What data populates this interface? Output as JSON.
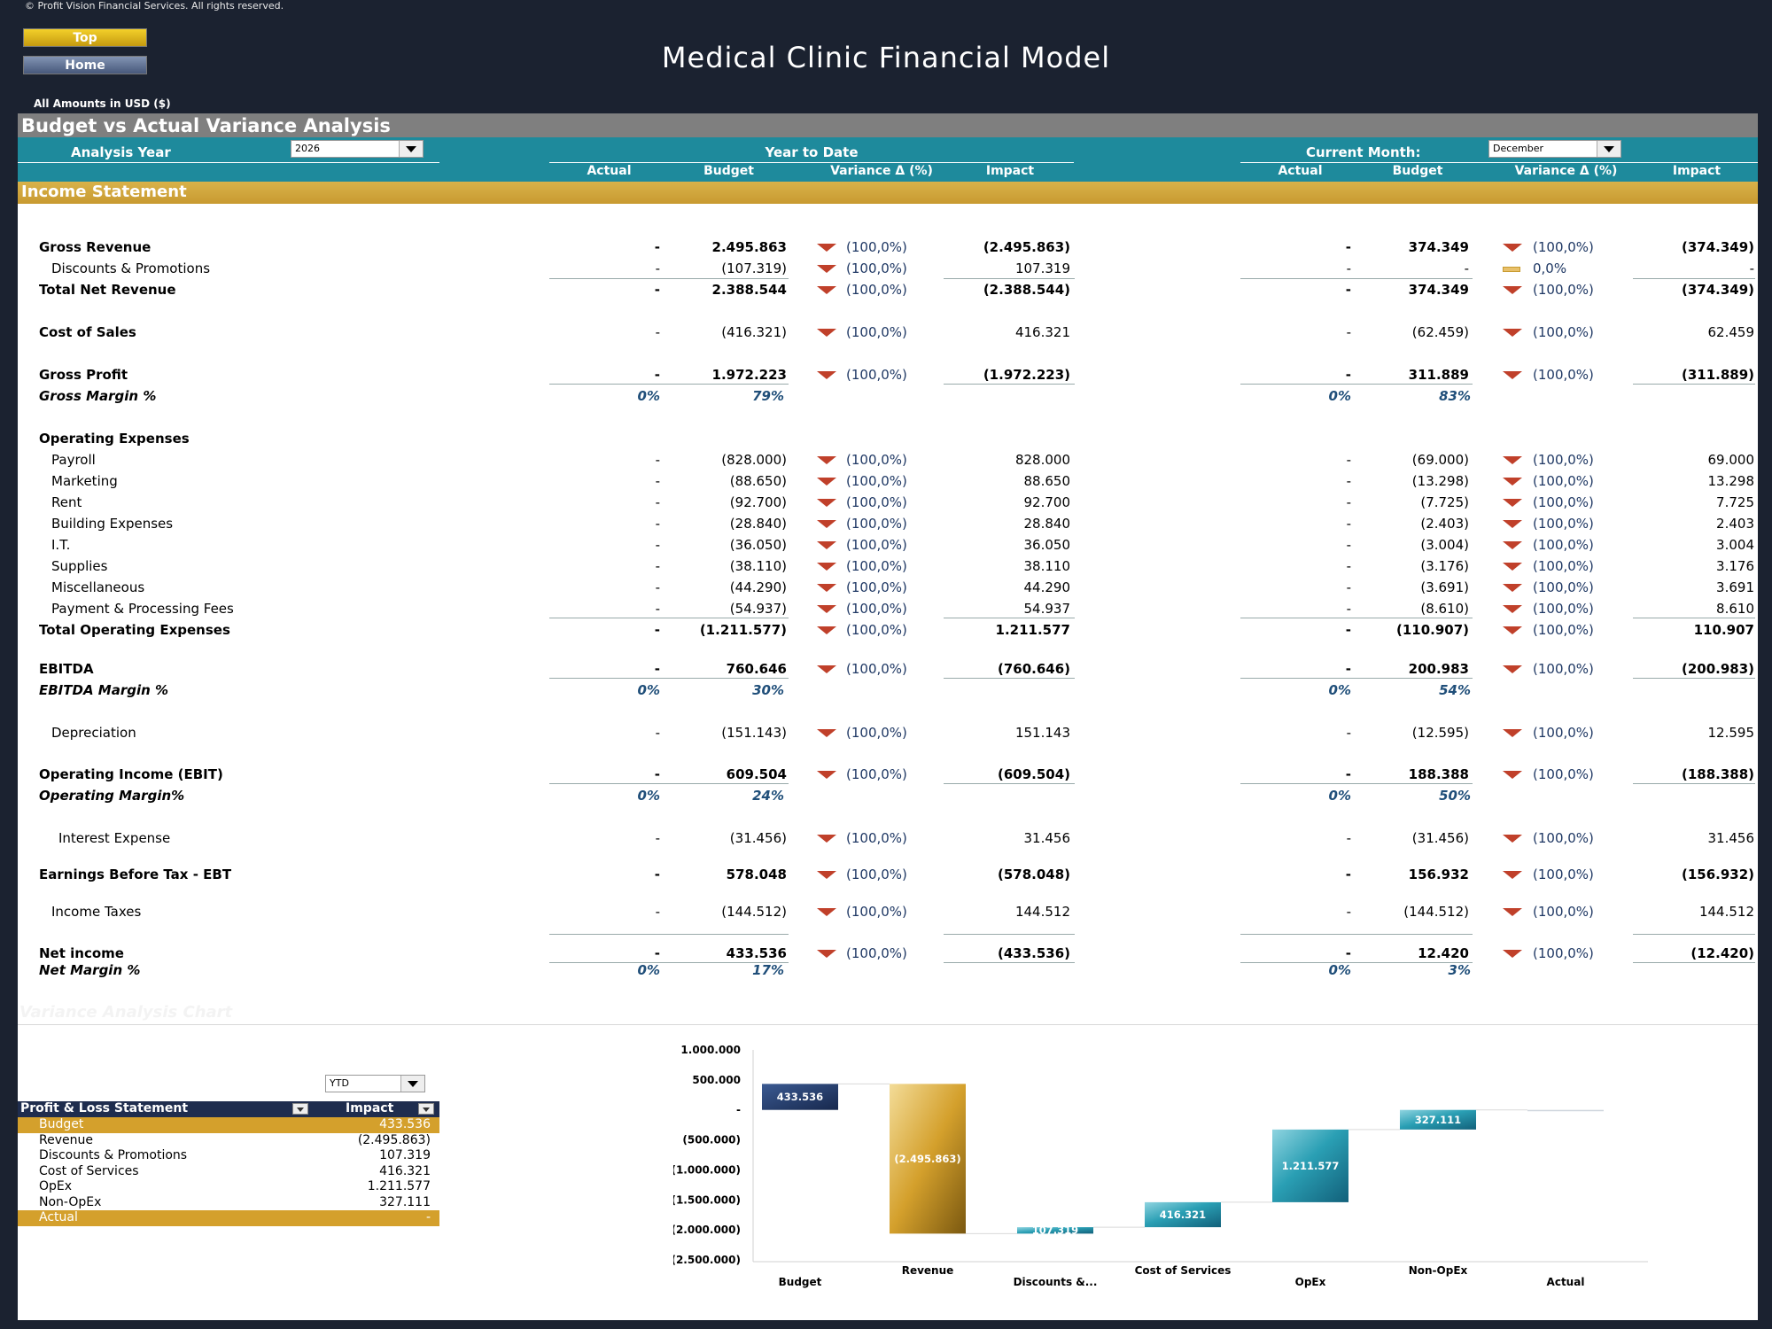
{
  "copyright": "© Profit Vision Financial Services. All rights reserved.",
  "nav": {
    "top": "Top",
    "home": "Home"
  },
  "title": "Medical Clinic Financial Model",
  "amounts_note": "All Amounts in  USD ($)",
  "section_title": "Budget vs Actual Variance Analysis",
  "header": {
    "analysis_year_label": "Analysis Year",
    "analysis_year_value": "2026",
    "ytd_label": "Year to Date",
    "current_month_label": "Current Month:",
    "current_month_value": "December",
    "columns": [
      "Actual",
      "Budget",
      "Variance Δ  (%)",
      "Impact"
    ]
  },
  "income_statement_title": "Income Statement",
  "rows": [
    {
      "label": "Gross Revenue",
      "bold": true,
      "ytd": [
        "-",
        "2.495.863",
        "(100,0%)",
        "(2.495.863)"
      ],
      "mon": [
        "-",
        "374.349",
        "(100,0%)",
        "(374.349)"
      ]
    },
    {
      "label": "Discounts & Promotions",
      "indent": 1,
      "ytd": [
        "-",
        "(107.319)",
        "(100,0%)",
        "107.319"
      ],
      "mon": [
        "-",
        "-",
        "0,0%",
        "-"
      ],
      "mon_flat": true
    },
    {
      "label": "Total Net Revenue",
      "bold": true,
      "ytd": [
        "-",
        "2.388.544",
        "(100,0%)",
        "(2.388.544)"
      ],
      "mon": [
        "-",
        "374.349",
        "(100,0%)",
        "(374.349)"
      ]
    },
    {
      "label": "Cost of Sales",
      "bold": true,
      "ytd": [
        "-",
        "(416.321)",
        "(100,0%)",
        "416.321"
      ],
      "mon": [
        "-",
        "(62.459)",
        "(100,0%)",
        "62.459"
      ],
      "numNormal": true
    },
    {
      "label": "Gross Profit",
      "bold": true,
      "ytd": [
        "-",
        "1.972.223",
        "(100,0%)",
        "(1.972.223)"
      ],
      "mon": [
        "-",
        "311.889",
        "(100,0%)",
        "(311.889)"
      ]
    },
    {
      "label": "Gross Margin %",
      "pct": true,
      "ytd": [
        "0%",
        "79%"
      ],
      "mon": [
        "0%",
        "83%"
      ]
    },
    {
      "label": "Operating Expenses",
      "bold": true,
      "header": true
    },
    {
      "label": "Payroll",
      "indent": 1,
      "ytd": [
        "-",
        "(828.000)",
        "(100,0%)",
        "828.000"
      ],
      "mon": [
        "-",
        "(69.000)",
        "(100,0%)",
        "69.000"
      ]
    },
    {
      "label": "Marketing",
      "indent": 1,
      "ytd": [
        "-",
        "(88.650)",
        "(100,0%)",
        "88.650"
      ],
      "mon": [
        "-",
        "(13.298)",
        "(100,0%)",
        "13.298"
      ]
    },
    {
      "label": "Rent",
      "indent": 1,
      "ytd": [
        "-",
        "(92.700)",
        "(100,0%)",
        "92.700"
      ],
      "mon": [
        "-",
        "(7.725)",
        "(100,0%)",
        "7.725"
      ]
    },
    {
      "label": "Building Expenses",
      "indent": 1,
      "ytd": [
        "-",
        "(28.840)",
        "(100,0%)",
        "28.840"
      ],
      "mon": [
        "-",
        "(2.403)",
        "(100,0%)",
        "2.403"
      ]
    },
    {
      "label": "I.T.",
      "indent": 1,
      "ytd": [
        "-",
        "(36.050)",
        "(100,0%)",
        "36.050"
      ],
      "mon": [
        "-",
        "(3.004)",
        "(100,0%)",
        "3.004"
      ]
    },
    {
      "label": "Supplies",
      "indent": 1,
      "ytd": [
        "-",
        "(38.110)",
        "(100,0%)",
        "38.110"
      ],
      "mon": [
        "-",
        "(3.176)",
        "(100,0%)",
        "3.176"
      ]
    },
    {
      "label": "Miscellaneous",
      "indent": 1,
      "ytd": [
        "-",
        "(44.290)",
        "(100,0%)",
        "44.290"
      ],
      "mon": [
        "-",
        "(3.691)",
        "(100,0%)",
        "3.691"
      ]
    },
    {
      "label": "Payment & Processing Fees",
      "indent": 1,
      "ytd": [
        "-",
        "(54.937)",
        "(100,0%)",
        "54.937"
      ],
      "mon": [
        "-",
        "(8.610)",
        "(100,0%)",
        "8.610"
      ]
    },
    {
      "label": "Total Operating Expenses",
      "bold": true,
      "ytd": [
        "-",
        "(1.211.577)",
        "(100,0%)",
        "1.211.577"
      ],
      "mon": [
        "-",
        "(110.907)",
        "(100,0%)",
        "110.907"
      ]
    },
    {
      "label": "EBITDA",
      "bold": true,
      "ytd": [
        "-",
        "760.646",
        "(100,0%)",
        "(760.646)"
      ],
      "mon": [
        "-",
        "200.983",
        "(100,0%)",
        "(200.983)"
      ]
    },
    {
      "label": "EBITDA Margin %",
      "pct": true,
      "ytd": [
        "0%",
        "30%"
      ],
      "mon": [
        "0%",
        "54%"
      ]
    },
    {
      "label": "Depreciation",
      "indent": 1,
      "ytd": [
        "-",
        "(151.143)",
        "(100,0%)",
        "151.143"
      ],
      "mon": [
        "-",
        "(12.595)",
        "(100,0%)",
        "12.595"
      ]
    },
    {
      "label": "Operating Income (EBIT)",
      "bold": true,
      "ytd": [
        "-",
        "609.504",
        "(100,0%)",
        "(609.504)"
      ],
      "mon": [
        "-",
        "188.388",
        "(100,0%)",
        "(188.388)"
      ]
    },
    {
      "label": "Operating Margin%",
      "pct": true,
      "ytd": [
        "0%",
        "24%"
      ],
      "mon": [
        "0%",
        "50%"
      ]
    },
    {
      "label": "Interest Expense",
      "indent": 2,
      "ytd": [
        "-",
        "(31.456)",
        "(100,0%)",
        "31.456"
      ],
      "mon": [
        "-",
        "(31.456)",
        "(100,0%)",
        "31.456"
      ]
    },
    {
      "label": "Earnings Before Tax - EBT",
      "bold": true,
      "ytd": [
        "-",
        "578.048",
        "(100,0%)",
        "(578.048)"
      ],
      "mon": [
        "-",
        "156.932",
        "(100,0%)",
        "(156.932)"
      ]
    },
    {
      "label": "Income Taxes",
      "indent": 1,
      "ytd": [
        "-",
        "(144.512)",
        "(100,0%)",
        "144.512"
      ],
      "mon": [
        "-",
        "(144.512)",
        "(100,0%)",
        "144.512"
      ]
    },
    {
      "label": "Net income",
      "bold": true,
      "ytd": [
        "-",
        "433.536",
        "(100,0%)",
        "(433.536)"
      ],
      "mon": [
        "-",
        "12.420",
        "(100,0%)",
        "(12.420)"
      ]
    },
    {
      "label": "Net Margin %",
      "pct": true,
      "ytd": [
        "0%",
        "17%"
      ],
      "mon": [
        "0%",
        "3%"
      ]
    }
  ],
  "faint_heading": "Variance Analysis Chart",
  "pl_table": {
    "period_select": "YTD",
    "header": [
      "Profit & Loss Statement",
      "Impact"
    ],
    "rows": [
      {
        "label": "Budget",
        "value": "433.536",
        "gold": true
      },
      {
        "label": "Revenue",
        "value": "(2.495.863)"
      },
      {
        "label": "Discounts & Promotions",
        "value": "107.319"
      },
      {
        "label": "Cost of Services",
        "value": "416.321"
      },
      {
        "label": "OpEx",
        "value": "1.211.577"
      },
      {
        "label": "Non-OpEx",
        "value": "327.111"
      },
      {
        "label": "Actual",
        "value": "-",
        "gold": true
      }
    ]
  },
  "colors": {
    "navy": "#1f3864",
    "gold": "#d4a02c",
    "teal": "#1e8a9c",
    "red_arrow": "#c0402a"
  },
  "chart_data": {
    "type": "waterfall",
    "categories": [
      "Budget",
      "Revenue",
      "Discounts &...",
      "Cost of Services",
      "OpEx",
      "Non-OpEx",
      "Actual"
    ],
    "values": [
      433536,
      -2495863,
      107319,
      416321,
      1211577,
      327111,
      0
    ],
    "labels": [
      "433.536",
      "(2.495.863)",
      "107.319",
      "416.321",
      "1.211.577",
      "327.111",
      ""
    ],
    "ylim": [
      -2500000,
      1000000
    ],
    "yticks": [
      "1.000.000",
      "500.000",
      "-",
      "(500.000)",
      "(1.000.000)",
      "(1.500.000)",
      "(2.000.000)",
      "(2.500.000)"
    ]
  }
}
